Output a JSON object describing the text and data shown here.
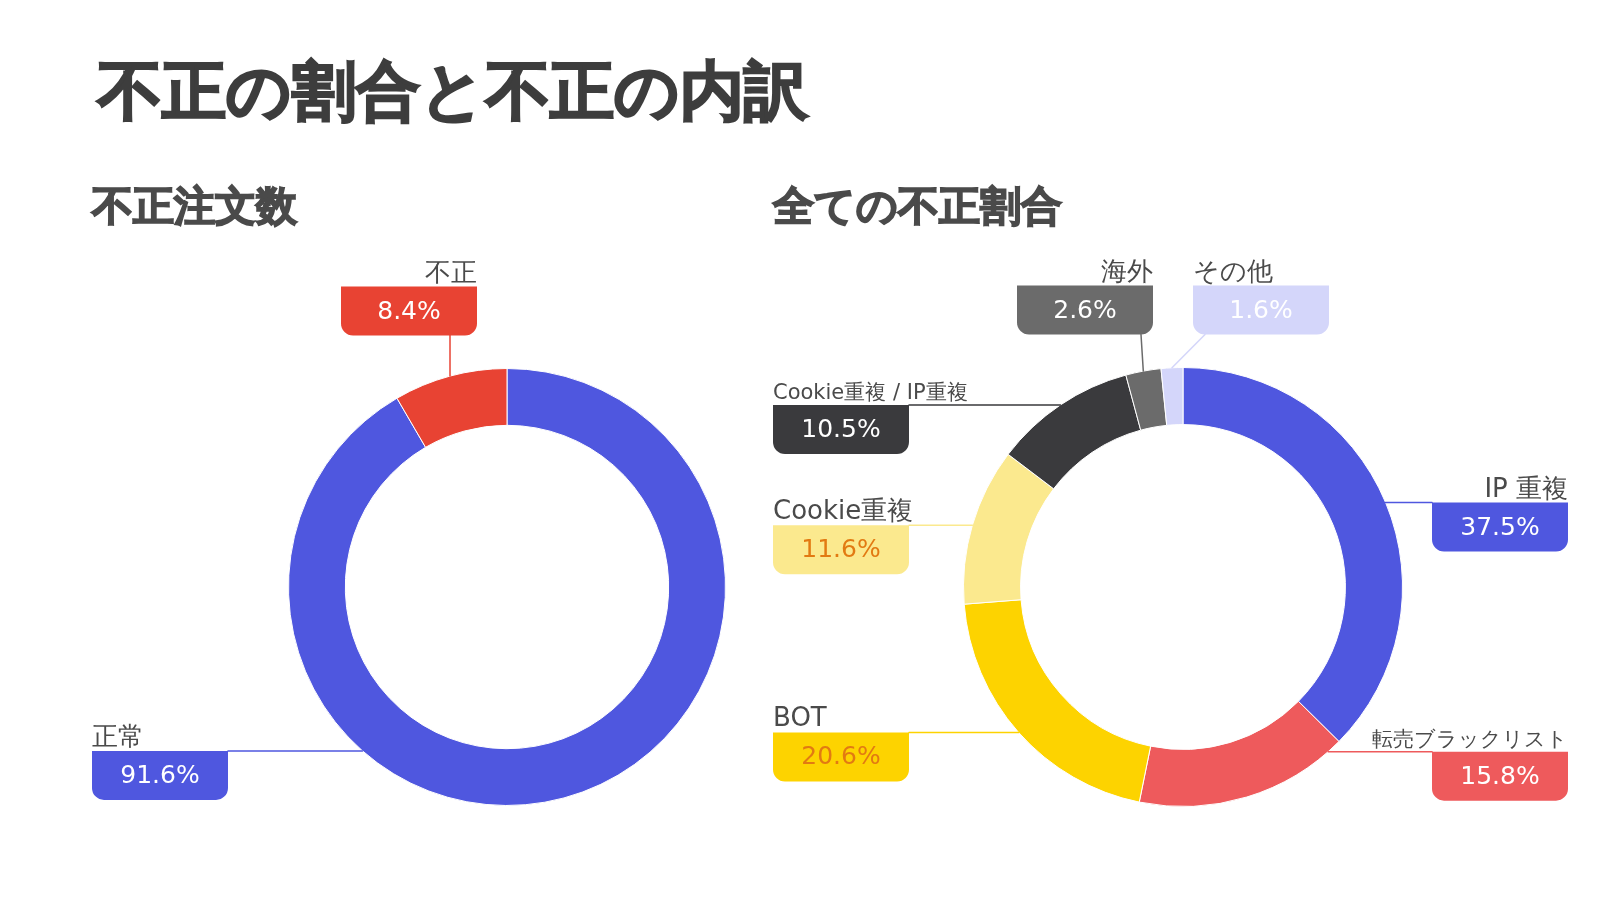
{
  "chart_data": [
    {
      "type": "other",
      "title": "不正の割合と不正の内訳"
    },
    {
      "type": "donut",
      "title": "不正注文数",
      "categories": [
        "正常",
        "不正"
      ],
      "values": [
        91.6,
        8.4
      ],
      "colors": [
        "#4f57df",
        "#e84333"
      ],
      "value_labels": [
        "91.6%",
        "8.4%"
      ]
    },
    {
      "type": "donut",
      "title": "全ての不正割合",
      "categories": [
        "IP 重複",
        "転売ブラックリスト",
        "BOT",
        "Cookie重複",
        "Cookie重複 / IP重複",
        "海外",
        "その他"
      ],
      "values": [
        37.5,
        15.8,
        20.6,
        11.6,
        10.5,
        2.6,
        1.6
      ],
      "colors": [
        "#4f57df",
        "#ee5a5c",
        "#fdd300",
        "#fbe98e",
        "#3a3a3d",
        "#6b6b6b",
        "#d4d6fa"
      ],
      "value_labels": [
        "37.5%",
        "15.8%",
        "20.6%",
        "11.6%",
        "10.5%",
        "2.6%",
        "1.6%"
      ]
    }
  ]
}
